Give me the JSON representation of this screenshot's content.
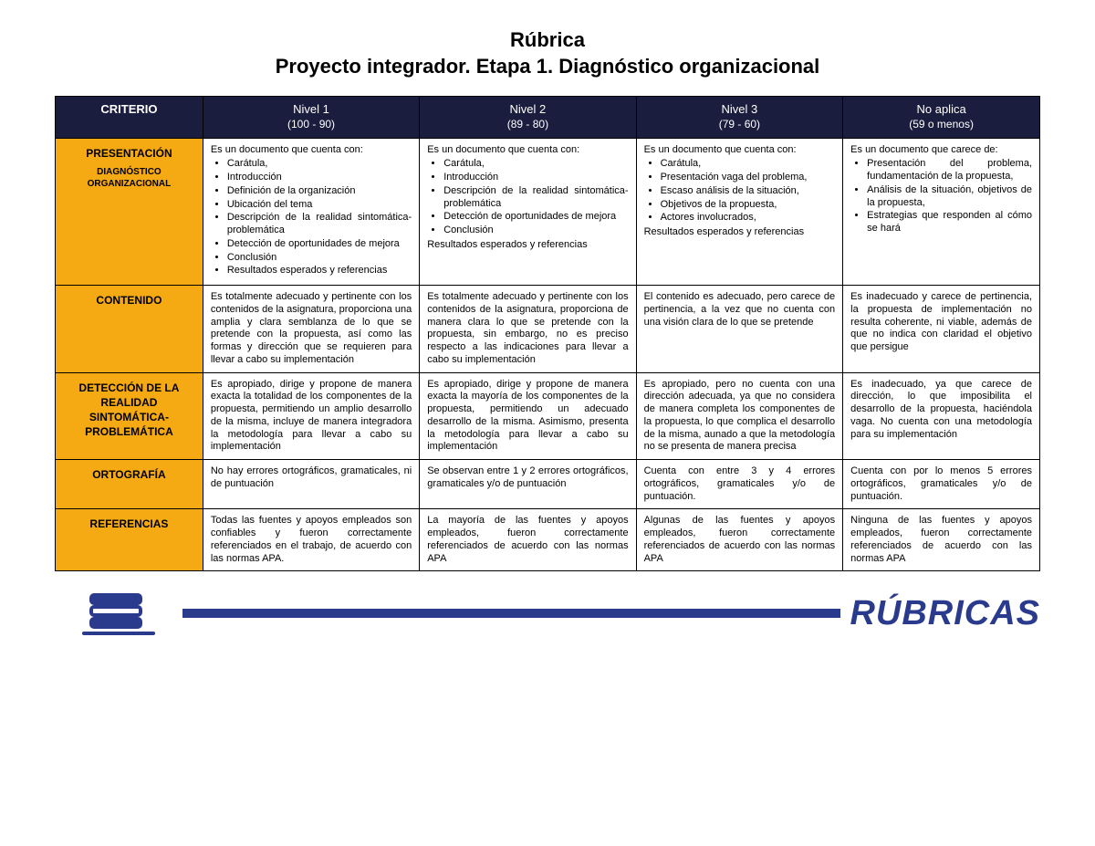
{
  "title": {
    "line1": "Rúbrica",
    "line2": "Proyecto integrador. Etapa 1. Diagnóstico organizacional"
  },
  "colors": {
    "header_bg": "#1a1d3d",
    "header_fg": "#ffffff",
    "crit_bg": "#f5a912",
    "footer_accent": "#2a3a8c"
  },
  "fonts": {
    "title_size_pt": 22,
    "header_size_pt": 13,
    "cell_size_pt": 11,
    "crit_size_pt": 12
  },
  "header": {
    "criterio": "CRITERIO",
    "levels": [
      {
        "name": "Nivel 1",
        "range": "(100 - 90)"
      },
      {
        "name": "Nivel 2",
        "range": "(89 - 80)"
      },
      {
        "name": "Nivel 3",
        "range": "(79 - 60)"
      },
      {
        "name": "No aplica",
        "range": "(59 o menos)"
      }
    ]
  },
  "rows": [
    {
      "criterion": "PRESENTACIÓN",
      "criterion_sub": "DIAGNÓSTICO ORGANIZACIONAL",
      "cells": [
        {
          "intro": "Es un documento que cuenta con:",
          "bullets": [
            "Carátula,",
            "Introducción",
            "Definición de la organización",
            "Ubicación del tema",
            "Descripción de la realidad sintomática-problemática",
            "Detección de oportunidades de mejora",
            "Conclusión",
            "Resultados esperados y referencias"
          ]
        },
        {
          "intro": "Es un documento que cuenta con:",
          "bullets": [
            "Carátula,",
            "Introducción",
            "Descripción de la realidad sintomática-problemática",
            "Detección de oportunidades de mejora",
            "Conclusión"
          ],
          "after": "Resultados esperados y referencias"
        },
        {
          "intro": "Es un documento que cuenta con:",
          "bullets": [
            "Carátula,",
            "Presentación vaga del problema,",
            "Escaso análisis de la situación,",
            "Objetivos de la propuesta,",
            "Actores involucrados,"
          ],
          "after": "Resultados esperados y referencias"
        },
        {
          "intro": "Es un documento que carece de:",
          "bullets": [
            "Presentación del problema, fundamentación de la propuesta,",
            "Análisis de la situación, objetivos de la propuesta,",
            "Estrategias que responden al cómo se hará"
          ]
        }
      ]
    },
    {
      "criterion": "CONTENIDO",
      "cells": [
        {
          "text": "Es totalmente adecuado y pertinente con los contenidos de la asignatura, proporciona una amplia y clara semblanza de lo que se pretende con la propuesta, así como las formas y dirección que se requieren para llevar a cabo su implementación"
        },
        {
          "text": "Es totalmente adecuado y pertinente con los contenidos de la asignatura, proporciona de manera clara lo que se pretende con la propuesta, sin embargo, no es preciso respecto a las indicaciones para llevar a cabo su implementación"
        },
        {
          "text": "El contenido es adecuado, pero carece de pertinencia, a la vez que no cuenta con una visión clara de lo que se pretende"
        },
        {
          "text": "Es inadecuado y carece de pertinencia, la propuesta de implementación no resulta coherente, ni viable, además de que no indica con claridad el objetivo que persigue"
        }
      ]
    },
    {
      "criterion": "DETECCIÓN DE LA REALIDAD SINTOMÁTICA-PROBLEMÁTICA",
      "cells": [
        {
          "text": "Es apropiado, dirige y propone de manera exacta la totalidad de los componentes de la propuesta, permitiendo un amplio desarrollo de la misma, incluye de manera integradora la metodología para llevar a cabo su implementación"
        },
        {
          "text": "Es apropiado, dirige y propone de manera exacta la mayoría de los componentes de la propuesta, permitiendo un adecuado desarrollo de la misma. Asimismo, presenta la metodología para llevar a cabo su implementación"
        },
        {
          "text": "Es apropiado, pero no cuenta con una dirección adecuada, ya que no considera de manera completa los componentes de la propuesta, lo que complica el desarrollo de la misma, aunado a que la metodología no se presenta de manera precisa"
        },
        {
          "text": "Es inadecuado, ya que carece de dirección, lo que imposibilita el desarrollo de la propuesta, haciéndola vaga. No cuenta con una metodología para su implementación"
        }
      ]
    },
    {
      "criterion": "ORTOGRAFÍA",
      "cells": [
        {
          "text": "No hay errores ortográficos, gramaticales, ni de puntuación"
        },
        {
          "text": "Se observan entre 1 y 2 errores ortográficos, gramaticales y/o de puntuación"
        },
        {
          "text": "Cuenta con entre 3 y 4 errores ortográficos, gramaticales y/o de puntuación."
        },
        {
          "text": "Cuenta con por lo menos 5 errores ortográficos, gramaticales y/o de puntuación."
        }
      ]
    },
    {
      "criterion": "REFERENCIAS",
      "cells": [
        {
          "text": "Todas las fuentes y apoyos empleados son confiables y fueron correctamente referenciados en el trabajo, de acuerdo con las normas APA."
        },
        {
          "text": "La mayoría de las fuentes y apoyos empleados, fueron correctamente referenciados de acuerdo con las normas APA"
        },
        {
          "text": "Algunas de las fuentes y apoyos empleados, fueron correctamente referenciados de acuerdo con las normas APA"
        },
        {
          "text": "Ninguna de las fuentes y apoyos empleados, fueron correctamente referenciados de acuerdo con las normas APA"
        }
      ]
    }
  ],
  "footer": {
    "label": "RÚBRICAS"
  }
}
